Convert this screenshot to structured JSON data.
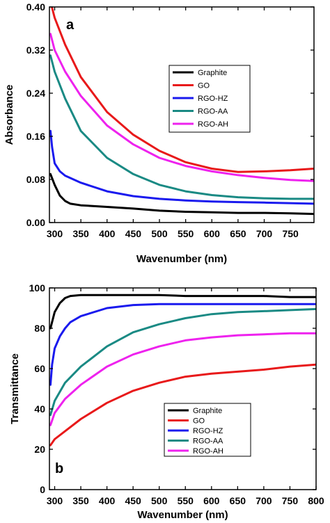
{
  "chart_data": [
    {
      "type": "line",
      "panel_label": "a",
      "xlabel": "Wavenumber (nm)",
      "ylabel": "Absorbance",
      "xlim": [
        290,
        795
      ],
      "ylim": [
        0,
        0.4
      ],
      "xticks": [
        300,
        350,
        400,
        450,
        500,
        550,
        600,
        650,
        700,
        750
      ],
      "yticks": [
        0,
        0.08,
        0.16,
        0.24,
        0.32,
        0.4
      ],
      "ytick_labels": [
        "0.00",
        "0.08",
        "0.16",
        "0.24",
        "0.32",
        "0.40"
      ],
      "grid": false,
      "legend_position": "right",
      "series": [
        {
          "name": "Graphite",
          "color": "#000000",
          "x": [
            292,
            300,
            310,
            320,
            330,
            350,
            400,
            450,
            500,
            550,
            600,
            650,
            700,
            750,
            795
          ],
          "y": [
            0.09,
            0.07,
            0.05,
            0.04,
            0.035,
            0.032,
            0.029,
            0.026,
            0.022,
            0.02,
            0.019,
            0.018,
            0.018,
            0.017,
            0.016
          ]
        },
        {
          "name": "GO",
          "color": "#e8191a",
          "x": [
            292,
            300,
            320,
            350,
            400,
            450,
            500,
            550,
            600,
            650,
            700,
            750,
            795
          ],
          "y": [
            0.41,
            0.38,
            0.33,
            0.27,
            0.205,
            0.163,
            0.133,
            0.112,
            0.1,
            0.094,
            0.095,
            0.097,
            0.1
          ]
        },
        {
          "name": "RGO-HZ",
          "color": "#1a1aee",
          "x": [
            292,
            295,
            300,
            310,
            320,
            350,
            400,
            450,
            500,
            550,
            600,
            650,
            700,
            750,
            795
          ],
          "y": [
            0.17,
            0.14,
            0.11,
            0.095,
            0.087,
            0.074,
            0.058,
            0.049,
            0.044,
            0.041,
            0.039,
            0.038,
            0.037,
            0.036,
            0.035
          ]
        },
        {
          "name": "RGO-AA",
          "color": "#1a8a84",
          "x": [
            292,
            300,
            320,
            350,
            400,
            450,
            500,
            550,
            600,
            650,
            700,
            750,
            795
          ],
          "y": [
            0.31,
            0.28,
            0.23,
            0.17,
            0.12,
            0.09,
            0.07,
            0.058,
            0.051,
            0.047,
            0.045,
            0.044,
            0.044
          ]
        },
        {
          "name": "RGO-AH",
          "color": "#ee22ee",
          "x": [
            292,
            300,
            320,
            350,
            400,
            450,
            500,
            550,
            600,
            650,
            700,
            750,
            795
          ],
          "y": [
            0.35,
            0.32,
            0.28,
            0.235,
            0.18,
            0.145,
            0.12,
            0.105,
            0.095,
            0.088,
            0.083,
            0.079,
            0.077
          ]
        }
      ]
    },
    {
      "type": "line",
      "panel_label": "b",
      "xlabel": "Wavenumber (nm)",
      "ylabel": "Transmittance",
      "xlim": [
        290,
        800
      ],
      "ylim": [
        0,
        100
      ],
      "xticks": [
        300,
        350,
        400,
        450,
        500,
        550,
        600,
        650,
        700,
        750,
        800
      ],
      "yticks": [
        0,
        20,
        40,
        60,
        80,
        100
      ],
      "ytick_labels": [
        "0",
        "20",
        "40",
        "60",
        "80",
        "100"
      ],
      "grid": false,
      "legend_position": "bottom-right",
      "series": [
        {
          "name": "Graphite",
          "color": "#000000",
          "x": [
            292,
            300,
            310,
            320,
            330,
            350,
            400,
            450,
            500,
            550,
            600,
            650,
            700,
            750,
            800
          ],
          "y": [
            80,
            88,
            92.5,
            95,
            96,
            96.5,
            96.5,
            96.5,
            96.5,
            96,
            96,
            96,
            96,
            95.5,
            95.5
          ]
        },
        {
          "name": "GO",
          "color": "#e8191a",
          "x": [
            292,
            300,
            320,
            350,
            400,
            450,
            500,
            550,
            600,
            650,
            700,
            750,
            800
          ],
          "y": [
            22,
            25,
            29,
            35,
            43,
            49,
            53,
            56,
            57.5,
            58.5,
            59.5,
            61,
            62
          ]
        },
        {
          "name": "RGO-HZ",
          "color": "#1a1aee",
          "x": [
            292,
            295,
            300,
            310,
            320,
            330,
            350,
            400,
            450,
            500,
            550,
            600,
            650,
            700,
            750,
            800
          ],
          "y": [
            52,
            62,
            70,
            76,
            80,
            83,
            86,
            90,
            91.5,
            92,
            92,
            92,
            92,
            92,
            92,
            92
          ]
        },
        {
          "name": "RGO-AA",
          "color": "#1a8a84",
          "x": [
            292,
            300,
            320,
            350,
            400,
            450,
            500,
            550,
            600,
            650,
            700,
            750,
            800
          ],
          "y": [
            37,
            44,
            53,
            61,
            71,
            78,
            82,
            85,
            87,
            88,
            88.5,
            89,
            89.5
          ]
        },
        {
          "name": "RGO-AH",
          "color": "#ee22ee",
          "x": [
            292,
            300,
            320,
            350,
            400,
            450,
            500,
            550,
            600,
            650,
            700,
            750,
            800
          ],
          "y": [
            32,
            38,
            45,
            52,
            61,
            67,
            71,
            74,
            75.5,
            76.5,
            77,
            77.5,
            77.5
          ]
        }
      ]
    }
  ]
}
